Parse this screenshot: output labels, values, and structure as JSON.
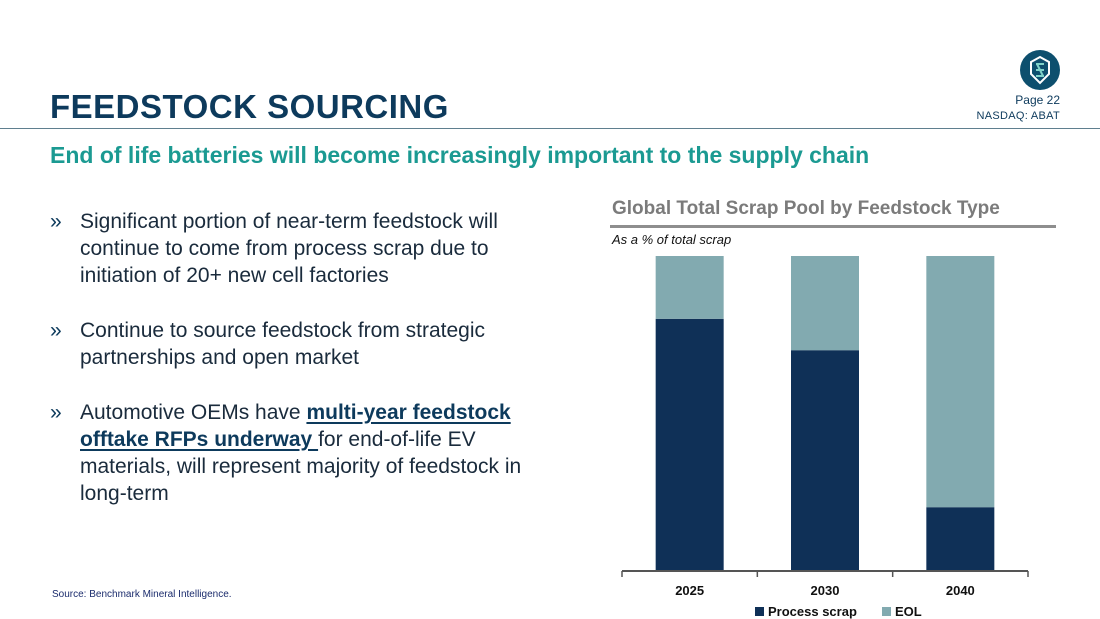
{
  "header": {
    "title": "FEEDSTOCK SOURCING",
    "page": "Page 22",
    "ticker": "NASDAQ: ABAT",
    "logo_icon": "battery-shield-logo-icon"
  },
  "subtitle": "End of life batteries will become increasingly important to the supply chain",
  "bullets": [
    {
      "marker": "»",
      "text": "Significant portion of near-term feedstock will continue to come from process scrap due to initiation of 20+ new cell factories"
    },
    {
      "marker": "»",
      "text": "Continue to source feedstock from strategic partnerships and open market"
    },
    {
      "marker": "»",
      "before": "Automotive OEMs have ",
      "highlight": "multi-year feedstock offtake RFPs underway ",
      "after": "for end-of-life EV materials, will represent majority of feedstock in long-term"
    }
  ],
  "source": "Source: Benchmark Mineral Intelligence.",
  "colors": {
    "process": "#0f3057",
    "eol": "#82aab0",
    "title": "#0d3a5c",
    "accent": "#1b9a92"
  },
  "chart_data": {
    "type": "bar",
    "stacked": true,
    "title": "Global Total Scrap Pool by Feedstock Type",
    "subtitle": "As a % of total scrap",
    "categories": [
      "2025",
      "2030",
      "2040"
    ],
    "series": [
      {
        "name": "Process scrap",
        "values": [
          80,
          70,
          20
        ]
      },
      {
        "name": "EOL",
        "values": [
          20,
          30,
          80
        ]
      }
    ],
    "ylim": [
      0,
      100
    ],
    "legend": "bottom"
  }
}
